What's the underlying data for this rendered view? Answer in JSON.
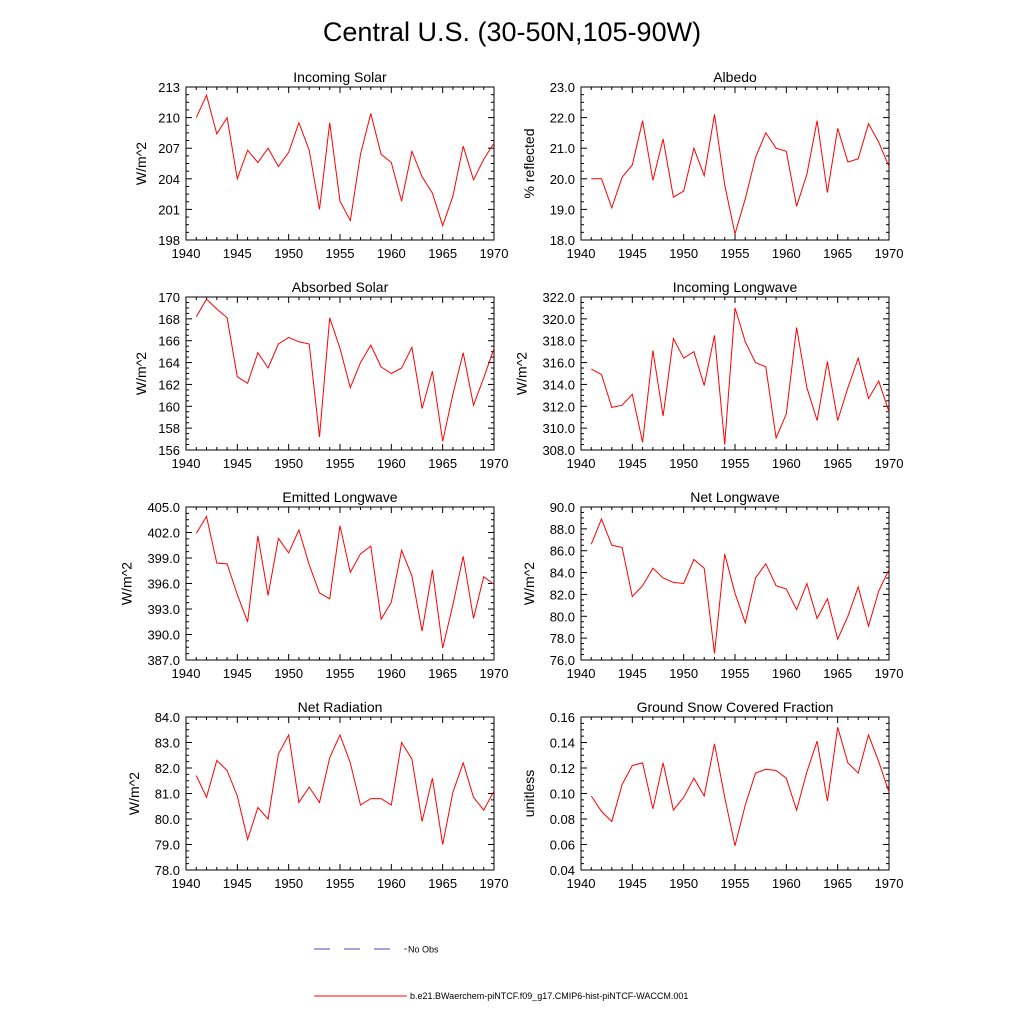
{
  "figure": {
    "title": "Central U.S. (30-50N,105-90W)",
    "legend": {
      "obs_label": "No Obs",
      "model_label": "b.e21.BWaerchem-piNTCF.f09_g17.CMIP6-hist-piNTCF-WACCM.001",
      "obs_color": "#4a4ab5",
      "model_color": "#ff0000"
    }
  },
  "chart_data": [
    {
      "type": "line",
      "title": "Incoming Solar",
      "ylabel": "W/m^2",
      "xlim": [
        1940,
        1970
      ],
      "ylim": [
        198,
        213
      ],
      "xticks": [
        "1940",
        "1945",
        "1950",
        "1955",
        "1960",
        "1965",
        "1970"
      ],
      "yticks": [
        "198",
        "201",
        "204",
        "207",
        "210",
        "213"
      ],
      "x": [
        1941,
        1942,
        1943,
        1944,
        1945,
        1946,
        1947,
        1948,
        1949,
        1950,
        1951,
        1952,
        1953,
        1954,
        1955,
        1956,
        1957,
        1958,
        1959,
        1960,
        1961,
        1962,
        1963,
        1964,
        1965,
        1966,
        1967,
        1968,
        1969,
        1970
      ],
      "series": [
        {
          "color": "#ff0000",
          "values": [
            210.0,
            212.2,
            208.4,
            210.0,
            204.0,
            206.8,
            205.6,
            207.0,
            205.2,
            206.6,
            209.5,
            206.8,
            201.0,
            209.5,
            201.8,
            199.9,
            206.4,
            210.4,
            206.4,
            205.6,
            201.8,
            206.7,
            204.2,
            202.6,
            199.4,
            202.3,
            207.2,
            203.9,
            205.9,
            207.5
          ]
        }
      ]
    },
    {
      "type": "line",
      "title": "Albedo",
      "ylabel": "% reflected",
      "xlim": [
        1940,
        1970
      ],
      "ylim": [
        18,
        23
      ],
      "xticks": [
        "1940",
        "1945",
        "1950",
        "1955",
        "1960",
        "1965",
        "1970"
      ],
      "yticks": [
        "18.0",
        "19.0",
        "20.0",
        "21.0",
        "22.0",
        "23.0"
      ],
      "x": [
        1941,
        1942,
        1943,
        1944,
        1945,
        1946,
        1947,
        1948,
        1949,
        1950,
        1951,
        1952,
        1953,
        1954,
        1955,
        1956,
        1957,
        1958,
        1959,
        1960,
        1961,
        1962,
        1963,
        1964,
        1965,
        1966,
        1967,
        1968,
        1969,
        1970
      ],
      "series": [
        {
          "color": "#ff0000",
          "values": [
            20.0,
            20.0,
            19.05,
            20.05,
            20.45,
            21.9,
            19.95,
            21.3,
            19.4,
            19.6,
            21.0,
            20.1,
            22.1,
            19.8,
            18.2,
            19.35,
            20.7,
            21.5,
            21.0,
            20.9,
            19.1,
            20.15,
            21.9,
            19.55,
            21.65,
            20.55,
            20.65,
            21.8,
            21.2,
            20.4
          ]
        }
      ]
    },
    {
      "type": "line",
      "title": "Absorbed Solar",
      "ylabel": "W/m^2",
      "xlim": [
        1940,
        1970
      ],
      "ylim": [
        156,
        170
      ],
      "xticks": [
        "1940",
        "1945",
        "1950",
        "1955",
        "1960",
        "1965",
        "1970"
      ],
      "yticks": [
        "156",
        "158",
        "160",
        "162",
        "164",
        "166",
        "168",
        "170"
      ],
      "x": [
        1941,
        1942,
        1943,
        1944,
        1945,
        1946,
        1947,
        1948,
        1949,
        1950,
        1951,
        1952,
        1953,
        1954,
        1955,
        1956,
        1957,
        1958,
        1959,
        1960,
        1961,
        1962,
        1963,
        1964,
        1965,
        1966,
        1967,
        1968,
        1969,
        1970
      ],
      "series": [
        {
          "color": "#ff0000",
          "values": [
            168.2,
            169.8,
            168.9,
            168.1,
            162.7,
            162.1,
            164.9,
            163.5,
            165.7,
            166.3,
            165.9,
            165.7,
            157.2,
            168.1,
            165.3,
            161.7,
            164.0,
            165.6,
            163.6,
            163.0,
            163.5,
            165.4,
            159.8,
            163.2,
            156.8,
            161.1,
            164.9,
            160.1,
            162.6,
            165.3
          ]
        }
      ]
    },
    {
      "type": "line",
      "title": "Incoming Longwave",
      "ylabel": "W/m^2",
      "xlim": [
        1940,
        1970
      ],
      "ylim": [
        308,
        322
      ],
      "xticks": [
        "1940",
        "1945",
        "1950",
        "1955",
        "1960",
        "1965",
        "1970"
      ],
      "yticks": [
        "308.0",
        "310.0",
        "312.0",
        "314.0",
        "316.0",
        "318.0",
        "320.0",
        "322.0"
      ],
      "x": [
        1941,
        1942,
        1943,
        1944,
        1945,
        1946,
        1947,
        1948,
        1949,
        1950,
        1951,
        1952,
        1953,
        1954,
        1955,
        1956,
        1957,
        1958,
        1959,
        1960,
        1961,
        1962,
        1963,
        1964,
        1965,
        1966,
        1967,
        1968,
        1969,
        1970
      ],
      "series": [
        {
          "color": "#ff0000",
          "values": [
            315.4,
            314.9,
            311.9,
            312.1,
            313.1,
            308.7,
            317.1,
            311.1,
            318.2,
            316.4,
            317.0,
            313.9,
            318.5,
            308.5,
            321.0,
            317.9,
            316.0,
            315.6,
            309.1,
            311.3,
            319.2,
            313.7,
            310.7,
            316.1,
            310.7,
            313.7,
            316.4,
            312.7,
            314.3,
            311.5
          ]
        }
      ]
    },
    {
      "type": "line",
      "title": "Emitted Longwave",
      "ylabel": "W/m^2",
      "xlim": [
        1940,
        1970
      ],
      "ylim": [
        387,
        405
      ],
      "xticks": [
        "1940",
        "1945",
        "1950",
        "1955",
        "1960",
        "1965",
        "1970"
      ],
      "yticks": [
        "387.0",
        "390.0",
        "393.0",
        "396.0",
        "399.0",
        "402.0",
        "405.0"
      ],
      "x": [
        1941,
        1942,
        1943,
        1944,
        1945,
        1946,
        1947,
        1948,
        1949,
        1950,
        1951,
        1952,
        1953,
        1954,
        1955,
        1956,
        1957,
        1958,
        1959,
        1960,
        1961,
        1962,
        1963,
        1964,
        1965,
        1966,
        1967,
        1968,
        1969,
        1970
      ],
      "series": [
        {
          "color": "#ff0000",
          "values": [
            401.9,
            403.9,
            398.4,
            398.3,
            394.7,
            391.5,
            401.6,
            394.6,
            401.3,
            399.6,
            402.3,
            398.2,
            394.9,
            394.2,
            402.8,
            397.3,
            399.5,
            400.4,
            391.8,
            393.8,
            399.9,
            396.9,
            390.4,
            397.6,
            388.4,
            393.5,
            399.2,
            391.9,
            396.8,
            395.9
          ]
        }
      ]
    },
    {
      "type": "line",
      "title": "Net Longwave",
      "ylabel": "W/m^2",
      "xlim": [
        1940,
        1970
      ],
      "ylim": [
        76,
        90
      ],
      "xticks": [
        "1940",
        "1945",
        "1950",
        "1955",
        "1960",
        "1965",
        "1970"
      ],
      "yticks": [
        "76.0",
        "78.0",
        "80.0",
        "82.0",
        "84.0",
        "86.0",
        "88.0",
        "90.0"
      ],
      "x": [
        1941,
        1942,
        1943,
        1944,
        1945,
        1946,
        1947,
        1948,
        1949,
        1950,
        1951,
        1952,
        1953,
        1954,
        1955,
        1956,
        1957,
        1958,
        1959,
        1960,
        1961,
        1962,
        1963,
        1964,
        1965,
        1966,
        1967,
        1968,
        1969,
        1970
      ],
      "series": [
        {
          "color": "#ff0000",
          "values": [
            86.6,
            88.9,
            86.5,
            86.3,
            81.8,
            82.8,
            84.4,
            83.5,
            83.1,
            83.0,
            85.2,
            84.4,
            76.6,
            85.7,
            82.1,
            79.4,
            83.5,
            84.8,
            82.8,
            82.5,
            80.6,
            83.0,
            79.8,
            81.6,
            77.9,
            80.0,
            82.7,
            79.1,
            82.3,
            84.3
          ]
        }
      ]
    },
    {
      "type": "line",
      "title": "Net Radiation",
      "ylabel": "W/m^2",
      "xlim": [
        1940,
        1970
      ],
      "ylim": [
        78,
        84
      ],
      "xticks": [
        "1940",
        "1945",
        "1950",
        "1955",
        "1960",
        "1965",
        "1970"
      ],
      "yticks": [
        "78.0",
        "79.0",
        "80.0",
        "81.0",
        "82.0",
        "83.0",
        "84.0"
      ],
      "x": [
        1941,
        1942,
        1943,
        1944,
        1945,
        1946,
        1947,
        1948,
        1949,
        1950,
        1951,
        1952,
        1953,
        1954,
        1955,
        1956,
        1957,
        1958,
        1959,
        1960,
        1961,
        1962,
        1963,
        1964,
        1965,
        1966,
        1967,
        1968,
        1969,
        1970
      ],
      "series": [
        {
          "color": "#ff0000",
          "values": [
            81.7,
            80.85,
            82.3,
            81.9,
            80.9,
            79.2,
            80.45,
            80.0,
            82.55,
            83.3,
            80.65,
            81.25,
            80.65,
            82.4,
            83.3,
            82.2,
            80.55,
            80.8,
            80.8,
            80.55,
            83.0,
            82.35,
            79.9,
            81.6,
            79.0,
            81.05,
            82.2,
            80.85,
            80.35,
            81.1
          ]
        }
      ]
    },
    {
      "type": "line",
      "title": "Ground Snow Covered Fraction",
      "ylabel": "unitless",
      "xlim": [
        1940,
        1970
      ],
      "ylim": [
        0.04,
        0.16
      ],
      "xticks": [
        "1940",
        "1945",
        "1950",
        "1955",
        "1960",
        "1965",
        "1970"
      ],
      "yticks": [
        "0.04",
        "0.06",
        "0.08",
        "0.10",
        "0.12",
        "0.14",
        "0.16"
      ],
      "x": [
        1941,
        1942,
        1943,
        1944,
        1945,
        1946,
        1947,
        1948,
        1949,
        1950,
        1951,
        1952,
        1953,
        1954,
        1955,
        1956,
        1957,
        1958,
        1959,
        1960,
        1961,
        1962,
        1963,
        1964,
        1965,
        1966,
        1967,
        1968,
        1969,
        1970
      ],
      "series": [
        {
          "color": "#ff0000",
          "values": [
            0.098,
            0.086,
            0.078,
            0.107,
            0.122,
            0.124,
            0.088,
            0.124,
            0.087,
            0.097,
            0.112,
            0.098,
            0.139,
            0.097,
            0.059,
            0.091,
            0.116,
            0.119,
            0.118,
            0.112,
            0.087,
            0.117,
            0.141,
            0.094,
            0.152,
            0.124,
            0.116,
            0.146,
            0.125,
            0.101
          ]
        }
      ]
    }
  ]
}
